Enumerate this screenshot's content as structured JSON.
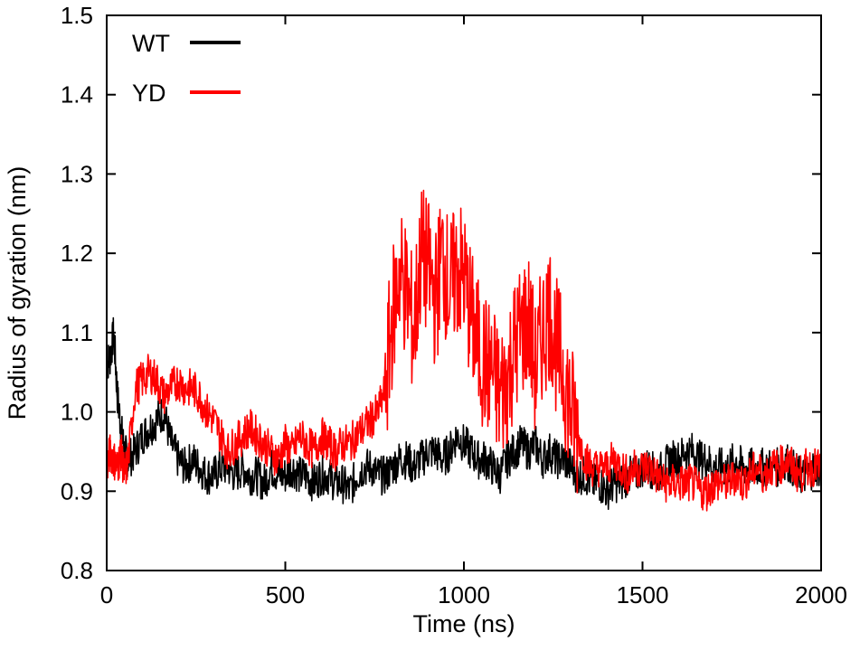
{
  "chart_data": {
    "type": "line",
    "title": "",
    "xlabel": "Time (ns)",
    "ylabel": "Radius of gyration (nm)",
    "xlim": [
      0,
      2000
    ],
    "ylim": [
      0.8,
      1.5
    ],
    "xticks": [
      0,
      500,
      1000,
      1500,
      2000
    ],
    "yticks": [
      0.8,
      0.9,
      1.0,
      1.1,
      1.2,
      1.3,
      1.4,
      1.5
    ],
    "xtick_labels": [
      "0",
      "500",
      "1000",
      "1500",
      "2000"
    ],
    "ytick_labels": [
      "0.8",
      "0.9",
      "1.0",
      "1.1",
      "1.2",
      "1.3",
      "1.4",
      "1.5"
    ],
    "grid": false,
    "legend_position": "top-left",
    "series": [
      {
        "name": "WT",
        "color": "#000000",
        "x": [
          0,
          10,
          20,
          30,
          40,
          50,
          60,
          80,
          100,
          120,
          140,
          160,
          180,
          200,
          220,
          240,
          260,
          280,
          300,
          320,
          340,
          360,
          380,
          400,
          420,
          440,
          460,
          480,
          500,
          520,
          540,
          560,
          580,
          600,
          620,
          640,
          660,
          680,
          700,
          720,
          740,
          760,
          780,
          800,
          820,
          840,
          860,
          880,
          900,
          920,
          940,
          960,
          980,
          1000,
          1020,
          1040,
          1060,
          1080,
          1100,
          1120,
          1140,
          1160,
          1180,
          1200,
          1220,
          1240,
          1260,
          1280,
          1300,
          1320,
          1340,
          1360,
          1380,
          1400,
          1420,
          1440,
          1460,
          1480,
          1500,
          1520,
          1540,
          1560,
          1580,
          1600,
          1620,
          1640,
          1660,
          1680,
          1700,
          1720,
          1740,
          1760,
          1780,
          1800,
          1820,
          1840,
          1860,
          1880,
          1900,
          1920,
          1940,
          1960,
          1980,
          2000
        ],
        "values": [
          1.06,
          1.07,
          1.1,
          1.02,
          0.98,
          0.95,
          0.94,
          0.95,
          0.97,
          0.98,
          0.99,
          1.0,
          0.96,
          0.94,
          0.93,
          0.94,
          0.93,
          0.92,
          0.92,
          0.93,
          0.93,
          0.92,
          0.93,
          0.92,
          0.92,
          0.91,
          0.93,
          0.92,
          0.92,
          0.93,
          0.92,
          0.92,
          0.91,
          0.92,
          0.92,
          0.91,
          0.91,
          0.9,
          0.92,
          0.93,
          0.93,
          0.92,
          0.92,
          0.93,
          0.94,
          0.94,
          0.93,
          0.94,
          0.95,
          0.95,
          0.94,
          0.95,
          0.97,
          0.96,
          0.95,
          0.94,
          0.94,
          0.93,
          0.92,
          0.94,
          0.95,
          0.96,
          0.95,
          0.96,
          0.94,
          0.95,
          0.94,
          0.94,
          0.93,
          0.92,
          0.92,
          0.91,
          0.91,
          0.9,
          0.91,
          0.91,
          0.92,
          0.92,
          0.93,
          0.93,
          0.92,
          0.93,
          0.94,
          0.94,
          0.95,
          0.95,
          0.94,
          0.94,
          0.93,
          0.93,
          0.93,
          0.94,
          0.93,
          0.93,
          0.93,
          0.93,
          0.93,
          0.93,
          0.94,
          0.93,
          0.92,
          0.92,
          0.93,
          0.93
        ]
      },
      {
        "name": "YD",
        "color": "#ff0000",
        "x": [
          0,
          10,
          20,
          30,
          40,
          50,
          60,
          80,
          100,
          120,
          140,
          160,
          180,
          200,
          220,
          240,
          260,
          280,
          300,
          320,
          340,
          360,
          380,
          400,
          420,
          440,
          460,
          480,
          500,
          520,
          540,
          560,
          580,
          600,
          620,
          640,
          660,
          680,
          700,
          720,
          740,
          760,
          780,
          800,
          820,
          840,
          860,
          880,
          900,
          920,
          940,
          960,
          980,
          1000,
          1020,
          1040,
          1060,
          1080,
          1100,
          1120,
          1140,
          1160,
          1180,
          1200,
          1220,
          1240,
          1260,
          1280,
          1300,
          1320,
          1340,
          1360,
          1380,
          1400,
          1420,
          1440,
          1460,
          1480,
          1500,
          1520,
          1540,
          1560,
          1580,
          1600,
          1620,
          1640,
          1660,
          1680,
          1700,
          1720,
          1740,
          1760,
          1780,
          1800,
          1820,
          1840,
          1860,
          1880,
          1900,
          1920,
          1940,
          1960,
          1980,
          2000
        ],
        "values": [
          0.93,
          0.95,
          0.94,
          0.93,
          0.95,
          0.92,
          0.94,
          1.03,
          1.04,
          1.05,
          1.04,
          1.02,
          1.03,
          1.04,
          1.03,
          1.03,
          1.02,
          1.0,
          0.99,
          0.97,
          0.95,
          0.96,
          0.97,
          0.98,
          0.97,
          0.96,
          0.95,
          0.94,
          0.96,
          0.95,
          0.97,
          0.96,
          0.95,
          0.97,
          0.96,
          0.95,
          0.96,
          0.96,
          0.97,
          0.98,
          0.99,
          1.0,
          1.03,
          1.12,
          1.18,
          1.15,
          1.1,
          1.2,
          1.18,
          1.14,
          1.2,
          1.15,
          1.18,
          1.17,
          1.12,
          1.08,
          1.06,
          1.05,
          1.02,
          1.04,
          1.08,
          1.1,
          1.12,
          1.05,
          1.1,
          1.13,
          1.08,
          1.05,
          1.0,
          0.97,
          0.94,
          0.93,
          0.93,
          0.93,
          0.94,
          0.93,
          0.92,
          0.93,
          0.93,
          0.93,
          0.92,
          0.91,
          0.91,
          0.91,
          0.91,
          0.91,
          0.9,
          0.9,
          0.91,
          0.91,
          0.91,
          0.92,
          0.91,
          0.92,
          0.93,
          0.92,
          0.93,
          0.93,
          0.94,
          0.93,
          0.92,
          0.93,
          0.93,
          0.93
        ]
      }
    ]
  }
}
